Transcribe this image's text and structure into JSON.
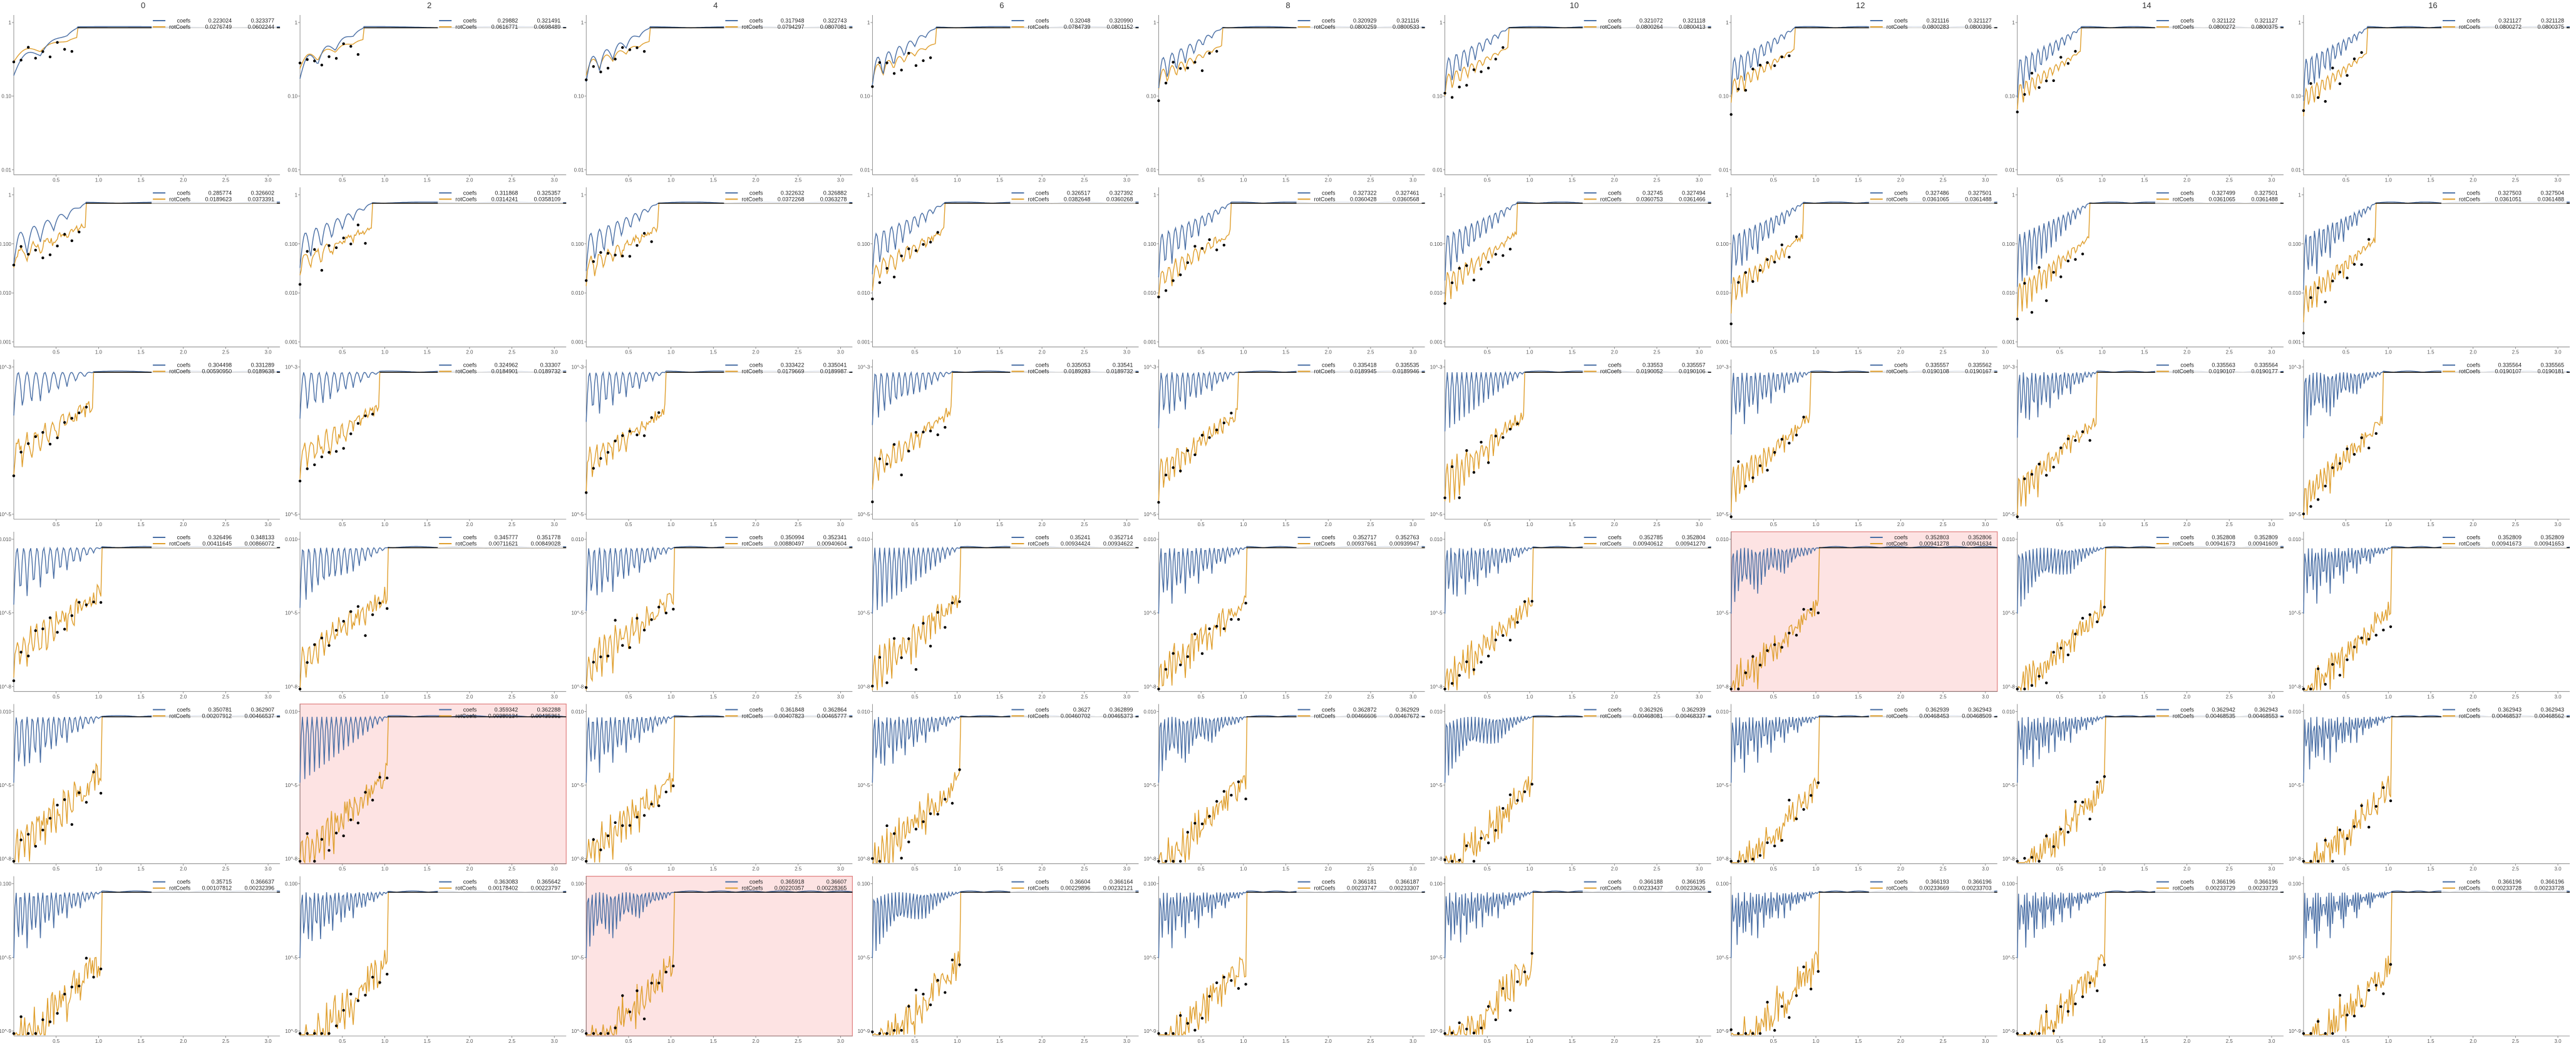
{
  "chart_data": {
    "type": "line",
    "columns": [
      "0",
      "2",
      "4",
      "6",
      "8",
      "10",
      "12",
      "14",
      "16"
    ],
    "xticks": [
      "0.5",
      "1.0",
      "1.5",
      "2.0",
      "2.5",
      "3.0"
    ],
    "xlim": [
      0,
      3.14
    ],
    "yscale": "log",
    "legend_labels": [
      "coefs",
      "rotCoefs"
    ],
    "colors": {
      "coefs": "#4a6fa5",
      "rotCoefs": "#e0a030",
      "points": "#000000",
      "highlight_bg": "#fde3e3",
      "highlight_border": "#e08080"
    },
    "rows": [
      {
        "yticks": [
          "1",
          "0.10",
          "0.01"
        ],
        "legend": [
          [
            "0.223024",
            "0.323377",
            "0.0276749",
            "0.0602244"
          ],
          [
            "0.29882",
            "0.321491",
            "0.0616771",
            "0.0698489"
          ],
          [
            "0.317948",
            "0.322743",
            "0.0794297",
            "0.0807081"
          ],
          [
            "0.32048",
            "0.320990",
            "0.0784739",
            "0.0801152"
          ],
          [
            "0.320929",
            "0.321116",
            "0.0800259",
            "0.0800533"
          ],
          [
            "0.321072",
            "0.321118",
            "0.0800264",
            "0.0800413"
          ],
          [
            "0.321116",
            "0.321127",
            "0.0800283",
            "0.0800396"
          ],
          [
            "0.321122",
            "0.321127",
            "0.0800272",
            "0.0800375"
          ],
          [
            "0.321127",
            "0.321128",
            "0.0800272",
            "0.0800375"
          ]
        ],
        "highlight": [
          false,
          false,
          false,
          false,
          false,
          false,
          false,
          false,
          false
        ]
      },
      {
        "yticks": [
          "1",
          "0.100",
          "0.010",
          "0.001"
        ],
        "legend": [
          [
            "0.285774",
            "0.326602",
            "0.0189623",
            "0.0373391"
          ],
          [
            "0.311868",
            "0.325357",
            "0.0314241",
            "0.0358109"
          ],
          [
            "0.322632",
            "0.326882",
            "0.0372268",
            "0.0363278"
          ],
          [
            "0.326517",
            "0.327392",
            "0.0382648",
            "0.0360268"
          ],
          [
            "0.327322",
            "0.327461",
            "0.0360428",
            "0.0360568"
          ],
          [
            "0.32745",
            "0.327494",
            "0.0360753",
            "0.0361466"
          ],
          [
            "0.327486",
            "0.327501",
            "0.0361065",
            "0.0361488"
          ],
          [
            "0.327499",
            "0.327501",
            "0.0361065",
            "0.0361488"
          ],
          [
            "0.327503",
            "0.327504",
            "0.0361051",
            "0.0361488"
          ]
        ],
        "highlight": [
          false,
          false,
          false,
          false,
          false,
          false,
          false,
          false,
          false
        ]
      },
      {
        "yticks": [
          "10^-3",
          "10^-5"
        ],
        "legend": [
          [
            "0.304498",
            "0.331289",
            "0.00590950",
            "0.0189638"
          ],
          [
            "0.324962",
            "0.33307",
            "0.0184901",
            "0.0189732"
          ],
          [
            "0.333422",
            "0.335041",
            "0.0179669",
            "0.0189987"
          ],
          [
            "0.335053",
            "0.33541",
            "0.0189283",
            "0.0189732"
          ],
          [
            "0.335418",
            "0.335535",
            "0.0189945",
            "0.0189946"
          ],
          [
            "0.33553",
            "0.335557",
            "0.0190052",
            "0.0190106"
          ],
          [
            "0.335557",
            "0.335562",
            "0.0190108",
            "0.0190167"
          ],
          [
            "0.335563",
            "0.335564",
            "0.0190107",
            "0.0190177"
          ],
          [
            "0.335564",
            "0.335565",
            "0.0190107",
            "0.0190181"
          ]
        ],
        "highlight": [
          false,
          false,
          false,
          false,
          false,
          false,
          false,
          false,
          false
        ]
      },
      {
        "yticks": [
          "0.010",
          "10^-5",
          "10^-8"
        ],
        "legend": [
          [
            "0.326496",
            "0.348133",
            "0.00411645",
            "0.00866072"
          ],
          [
            "0.345777",
            "0.351778",
            "0.00711621",
            "0.00849028"
          ],
          [
            "0.350994",
            "0.352341",
            "0.00880497",
            "0.00940604"
          ],
          [
            "0.35241",
            "0.352714",
            "0.00934424",
            "0.00934622"
          ],
          [
            "0.352717",
            "0.352763",
            "0.00937661",
            "0.00939947"
          ],
          [
            "0.352785",
            "0.352804",
            "0.00940612",
            "0.00941270"
          ],
          [
            "0.352803",
            "0.352806",
            "0.00941278",
            "0.00941634"
          ],
          [
            "0.352808",
            "0.352809",
            "0.00941673",
            "0.00941609"
          ],
          [
            "0.352809",
            "0.352809",
            "0.00941673",
            "0.00941653"
          ]
        ],
        "highlight": [
          false,
          false,
          false,
          false,
          false,
          false,
          true,
          false,
          false
        ]
      },
      {
        "yticks": [
          "0.010",
          "10^-5",
          "10^-8"
        ],
        "legend": [
          [
            "0.350781",
            "0.362907",
            "0.00207912",
            "0.00466537"
          ],
          [
            "0.359342",
            "0.362288",
            "0.00380134",
            "0.00435361"
          ],
          [
            "0.361848",
            "0.362864",
            "0.00407823",
            "0.00465777"
          ],
          [
            "0.3627",
            "0.362899",
            "0.00460702",
            "0.00465373"
          ],
          [
            "0.362872",
            "0.362929",
            "0.00466606",
            "0.00467672"
          ],
          [
            "0.362926",
            "0.362939",
            "0.00468081",
            "0.00468337"
          ],
          [
            "0.362939",
            "0.362943",
            "0.00468453",
            "0.00468509"
          ],
          [
            "0.362942",
            "0.362943",
            "0.00468535",
            "0.00468553"
          ],
          [
            "0.362943",
            "0.362943",
            "0.00468537",
            "0.00468562"
          ]
        ],
        "highlight": [
          false,
          true,
          false,
          false,
          false,
          false,
          false,
          false,
          false
        ]
      },
      {
        "yticks": [
          "0.100",
          "10^-5",
          "10^-9"
        ],
        "legend": [
          [
            "0.35715",
            "0.366637",
            "0.00107812",
            "0.00232396"
          ],
          [
            "0.363083",
            "0.365642",
            "0.00178402",
            "0.00223797"
          ],
          [
            "0.365918",
            "0.36607",
            "0.00220357",
            "0.00228365"
          ],
          [
            "0.36604",
            "0.366164",
            "0.00229896",
            "0.00232121"
          ],
          [
            "0.366181",
            "0.366187",
            "0.00233747",
            "0.00233307"
          ],
          [
            "0.366188",
            "0.366195",
            "0.00233437",
            "0.00233626"
          ],
          [
            "0.366193",
            "0.366196",
            "0.00233669",
            "0.00233703"
          ],
          [
            "0.366196",
            "0.366196",
            "0.00233729",
            "0.00233723"
          ],
          [
            "0.366196",
            "0.366196",
            "0.00233728",
            "0.00233728"
          ]
        ],
        "highlight": [
          false,
          false,
          true,
          false,
          false,
          false,
          false,
          false,
          false
        ]
      }
    ]
  }
}
